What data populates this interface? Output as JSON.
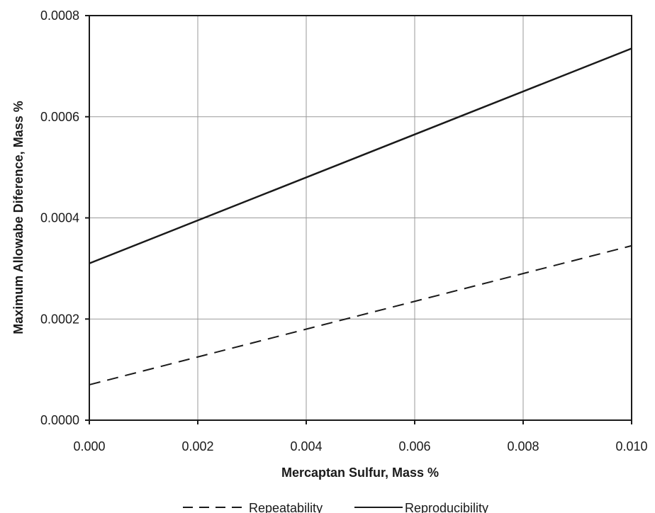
{
  "chart_data": {
    "type": "line",
    "title": "",
    "xlabel": "Mercaptan Sulfur, Mass %",
    "ylabel": "Maximum Allowabe Diference, Mass %",
    "xlim": [
      0,
      0.01
    ],
    "ylim": [
      0,
      0.0008
    ],
    "x_ticks": [
      "0.000",
      "0.002",
      "0.004",
      "0.006",
      "0.008",
      "0.010"
    ],
    "x_tick_values": [
      0,
      0.002,
      0.004,
      0.006,
      0.008,
      0.01
    ],
    "y_ticks": [
      "0.0000",
      "0.0002",
      "0.0004",
      "0.0006",
      "0.0008"
    ],
    "y_tick_values": [
      0,
      0.0002,
      0.0004,
      0.0006,
      0.0008
    ],
    "grid": true,
    "legend_position": "bottom-center",
    "series": [
      {
        "name": "Repeatability",
        "style": "dashed",
        "color": "#1a1a1a",
        "x": [
          0,
          0.01
        ],
        "y": [
          7e-05,
          0.000345
        ]
      },
      {
        "name": "Reproducibility",
        "style": "solid",
        "color": "#1a1a1a",
        "x": [
          0,
          0.01
        ],
        "y": [
          0.00031,
          0.000735
        ]
      }
    ]
  }
}
